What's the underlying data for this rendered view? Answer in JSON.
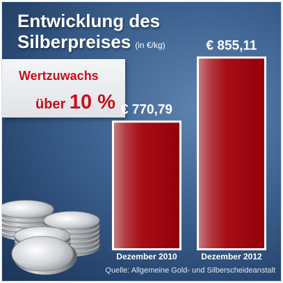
{
  "header": {
    "title_line1": "Entwicklung des",
    "title_line2": "Silberpreises",
    "unit": "(in €/kg)"
  },
  "badge": {
    "line1": "Wertzuwachs",
    "line2_prefix": "über",
    "line2_value": "10 %",
    "color": "#c4111b"
  },
  "source": "Quelle: Allgemeine Gold- und Silberscheideanstalt",
  "chart_data": {
    "type": "bar",
    "title": "Entwicklung des Silberpreises",
    "ylabel": "(in €/kg)",
    "categories": [
      "Dezember 2010",
      "Dezember 2012"
    ],
    "values": [
      770.79,
      855.11
    ],
    "value_labels": [
      "€ 770,79",
      "€ 855,11"
    ],
    "ylim": [
      600,
      870
    ],
    "grid": false,
    "bar_color": "#a3000a"
  }
}
